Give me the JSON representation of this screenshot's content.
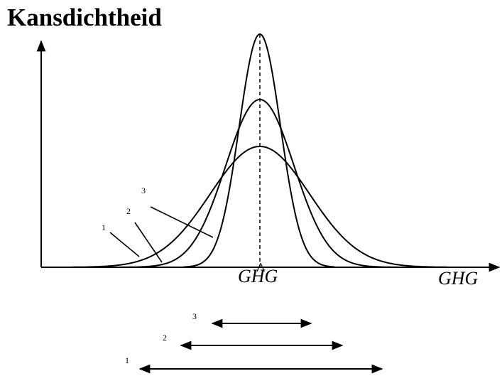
{
  "title": "Kansdichtheid",
  "labels": {
    "center_label": "GHG",
    "hat_mark": "^",
    "axis_label": "GHG"
  },
  "curves": [
    {
      "id": "1",
      "label": "1"
    },
    {
      "id": "2",
      "label": "2"
    },
    {
      "id": "3",
      "label": "3"
    }
  ],
  "ranges": [
    {
      "id": "3",
      "label": "3"
    },
    {
      "id": "2",
      "label": "2"
    },
    {
      "id": "1",
      "label": "1"
    }
  ],
  "colors": {
    "ink": "#000000",
    "background": "#ffffff"
  }
}
